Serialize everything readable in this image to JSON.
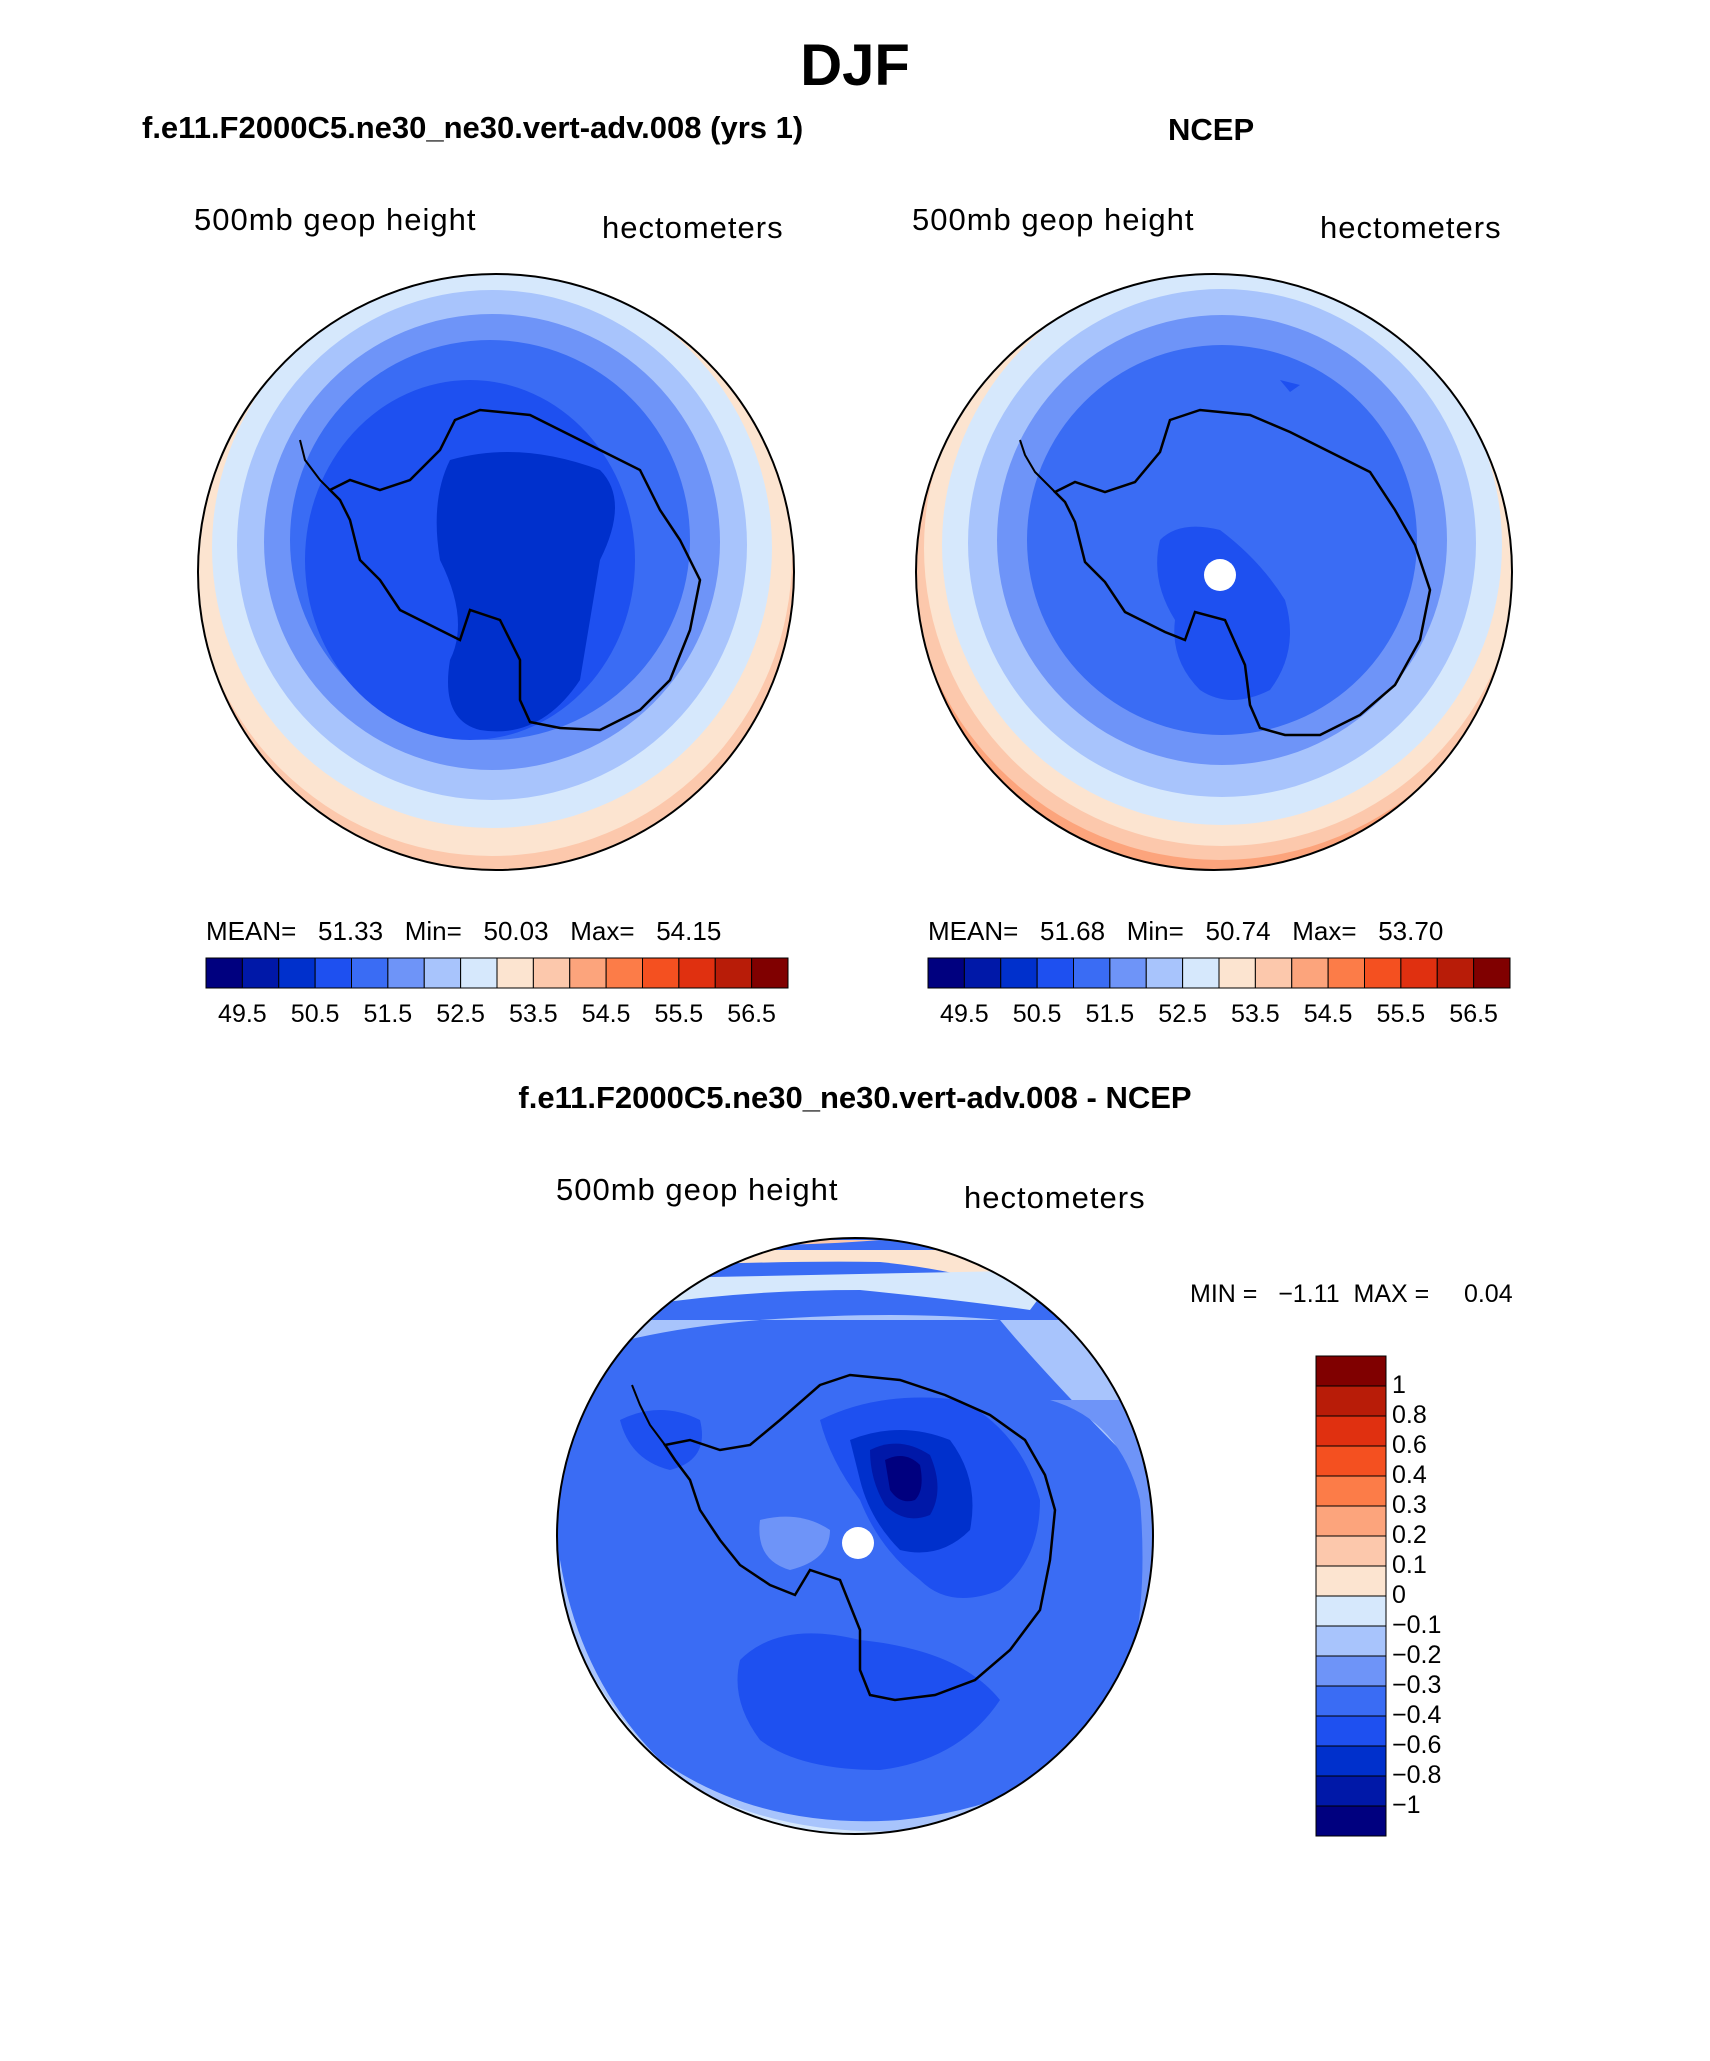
{
  "title": "DJF",
  "panels": [
    {
      "case_title": "f.e11.F2000C5.ne30_ne30.vert-adv.008 (yrs 1)",
      "variable": "500mb geop height",
      "units": "hectometers",
      "stats": {
        "mean_label": "MEAN=",
        "mean": "51.33",
        "min_label": "Min=",
        "min": "50.03",
        "max_label": "Max=",
        "max": "54.15"
      }
    },
    {
      "case_title": "NCEP",
      "variable": "500mb geop height",
      "units": "hectometers",
      "stats": {
        "mean_label": "MEAN=",
        "mean": "51.68",
        "min_label": "Min=",
        "min": "50.74",
        "max_label": "Max=",
        "max": "53.70"
      }
    }
  ],
  "abs_colorbar": {
    "colors": [
      "#00007f",
      "#0018a8",
      "#0030cc",
      "#1e50f0",
      "#3a6cf4",
      "#6e94f8",
      "#a8c4fc",
      "#d6e8fc",
      "#fce4d0",
      "#fcc8ac",
      "#fca47c",
      "#fc7c48",
      "#f45020",
      "#e03010",
      "#b81c08",
      "#800000"
    ],
    "tick_labels": [
      "49.5",
      "50.5",
      "51.5",
      "52.5",
      "53.5",
      "54.5",
      "55.5",
      "56.5"
    ]
  },
  "difference": {
    "title": "f.e11.F2000C5.ne30_ne30.vert-adv.008 - NCEP",
    "variable": "500mb geop height",
    "units": "hectometers",
    "stats_text": "MIN =   −1.11  MAX =     0.04",
    "colorbar": {
      "colors_top_to_bottom": [
        "#800000",
        "#b81c08",
        "#e03010",
        "#f45020",
        "#fc7c48",
        "#fca47c",
        "#fcc8ac",
        "#fce4d0",
        "#d6e8fc",
        "#a8c4fc",
        "#6e94f8",
        "#3a6cf4",
        "#1e50f0",
        "#0030cc",
        "#0018a8",
        "#00007f"
      ],
      "tick_labels_top_to_bottom": [
        "1",
        "0.8",
        "0.6",
        "0.4",
        "0.3",
        "0.2",
        "0.1",
        "0",
        "−0.1",
        "−0.2",
        "−0.3",
        "−0.4",
        "−0.6",
        "−0.8",
        "−1"
      ]
    }
  }
}
